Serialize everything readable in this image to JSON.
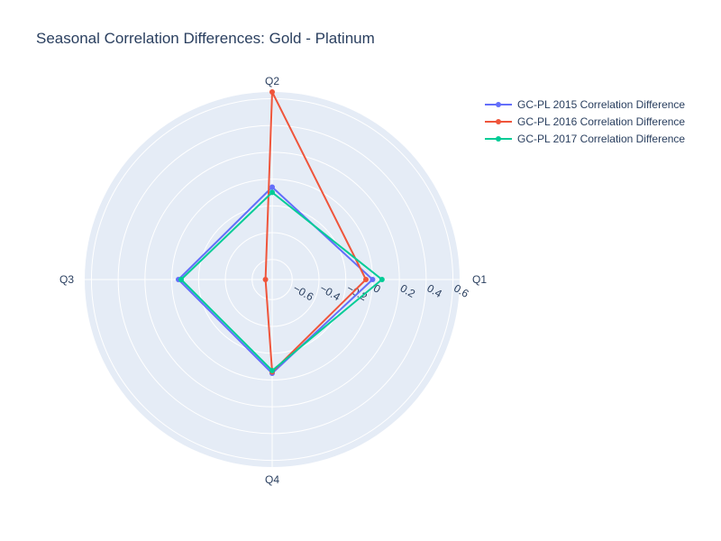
{
  "chart_data": {
    "type": "radar",
    "title": "Seasonal Correlation Differences: Gold - Platinum",
    "categories": [
      "Q1",
      "Q2",
      "Q3",
      "Q4"
    ],
    "radial_range": [
      -0.75,
      0.65
    ],
    "radial_ticks": [
      "−0.6",
      "−0.4",
      "−0.2",
      "0",
      "0.2",
      "0.4",
      "0.6"
    ],
    "radial_tick_values": [
      -0.6,
      -0.4,
      -0.2,
      0,
      0.2,
      0.4,
      0.6
    ],
    "grid": true,
    "legend_position": "top-right",
    "series": [
      {
        "name": "GC-PL 2015 Correlation Difference",
        "color": "#636efa",
        "values": [
          0.0,
          -0.06,
          -0.05,
          -0.05
        ]
      },
      {
        "name": "GC-PL 2016 Correlation Difference",
        "color": "#ef553b",
        "values": [
          -0.05,
          0.65,
          -0.7,
          -0.06
        ]
      },
      {
        "name": "GC-PL 2017 Correlation Difference",
        "color": "#00cc96",
        "values": [
          0.07,
          -0.1,
          -0.07,
          -0.07
        ]
      }
    ]
  }
}
